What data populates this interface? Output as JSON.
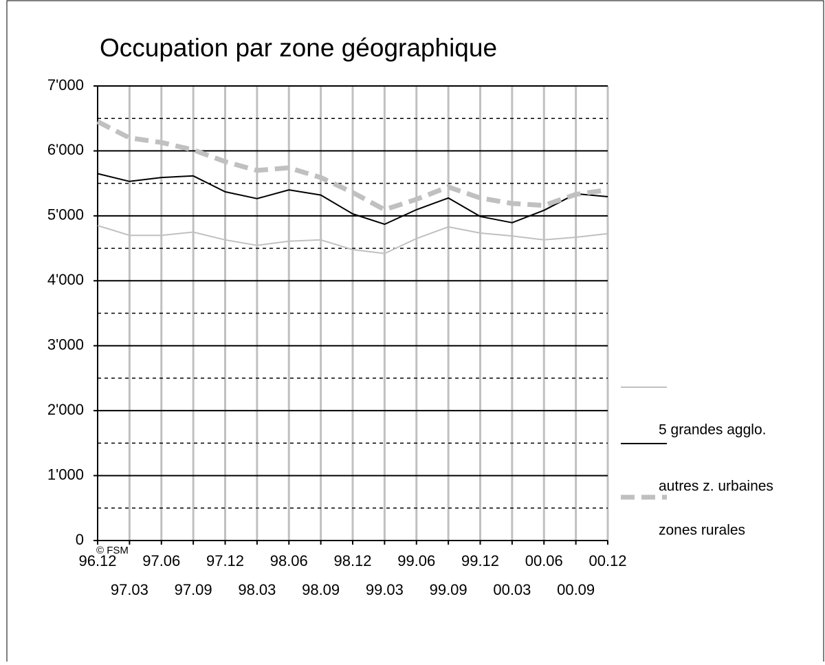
{
  "chart_data": {
    "type": "line",
    "title": "Occupation par zone géographique",
    "footer": "© FSM",
    "categories": [
      "96.12",
      "97.03",
      "97.06",
      "97.09",
      "97.12",
      "98.03",
      "98.06",
      "98.09",
      "98.12",
      "99.03",
      "99.06",
      "99.09",
      "99.12",
      "00.03",
      "00.06",
      "00.09",
      "00.12"
    ],
    "series": [
      {
        "name": "5 grandes agglo.",
        "color": "#c0c0c0",
        "line_width": 2,
        "dashed": false,
        "values": [
          4850,
          4700,
          4700,
          4750,
          4630,
          4545,
          4610,
          4630,
          4480,
          4420,
          4650,
          4830,
          4735,
          4690,
          4630,
          4670,
          4725
        ]
      },
      {
        "name": "autres z. urbaines",
        "color": "#000000",
        "line_width": 2,
        "dashed": false,
        "values": [
          5650,
          5530,
          5590,
          5615,
          5370,
          5265,
          5400,
          5320,
          5030,
          4870,
          5095,
          5275,
          4990,
          4895,
          5085,
          5340,
          5295
        ]
      },
      {
        "name": "zones rurales",
        "color": "#c0c0c0",
        "line_width": 7,
        "dashed": true,
        "values": [
          6450,
          6200,
          6130,
          6015,
          5835,
          5700,
          5740,
          5590,
          5360,
          5095,
          5255,
          5445,
          5275,
          5190,
          5160,
          5330,
          5400
        ]
      }
    ],
    "ylim": [
      0,
      7000
    ],
    "yticks": [
      0,
      {
        "value": 1000,
        "label": "1'000"
      },
      {
        "value": 2000,
        "label": "2'000"
      },
      {
        "value": 3000,
        "label": "3'000"
      },
      {
        "value": 4000,
        "label": "4'000"
      },
      {
        "value": 5000,
        "label": "5'000"
      },
      {
        "value": 6000,
        "label": "6'000"
      },
      {
        "value": 7000,
        "label": "7'000"
      }
    ],
    "yminor": [
      500,
      1500,
      2500,
      3500,
      4500,
      5500,
      6500
    ],
    "grid": true
  }
}
